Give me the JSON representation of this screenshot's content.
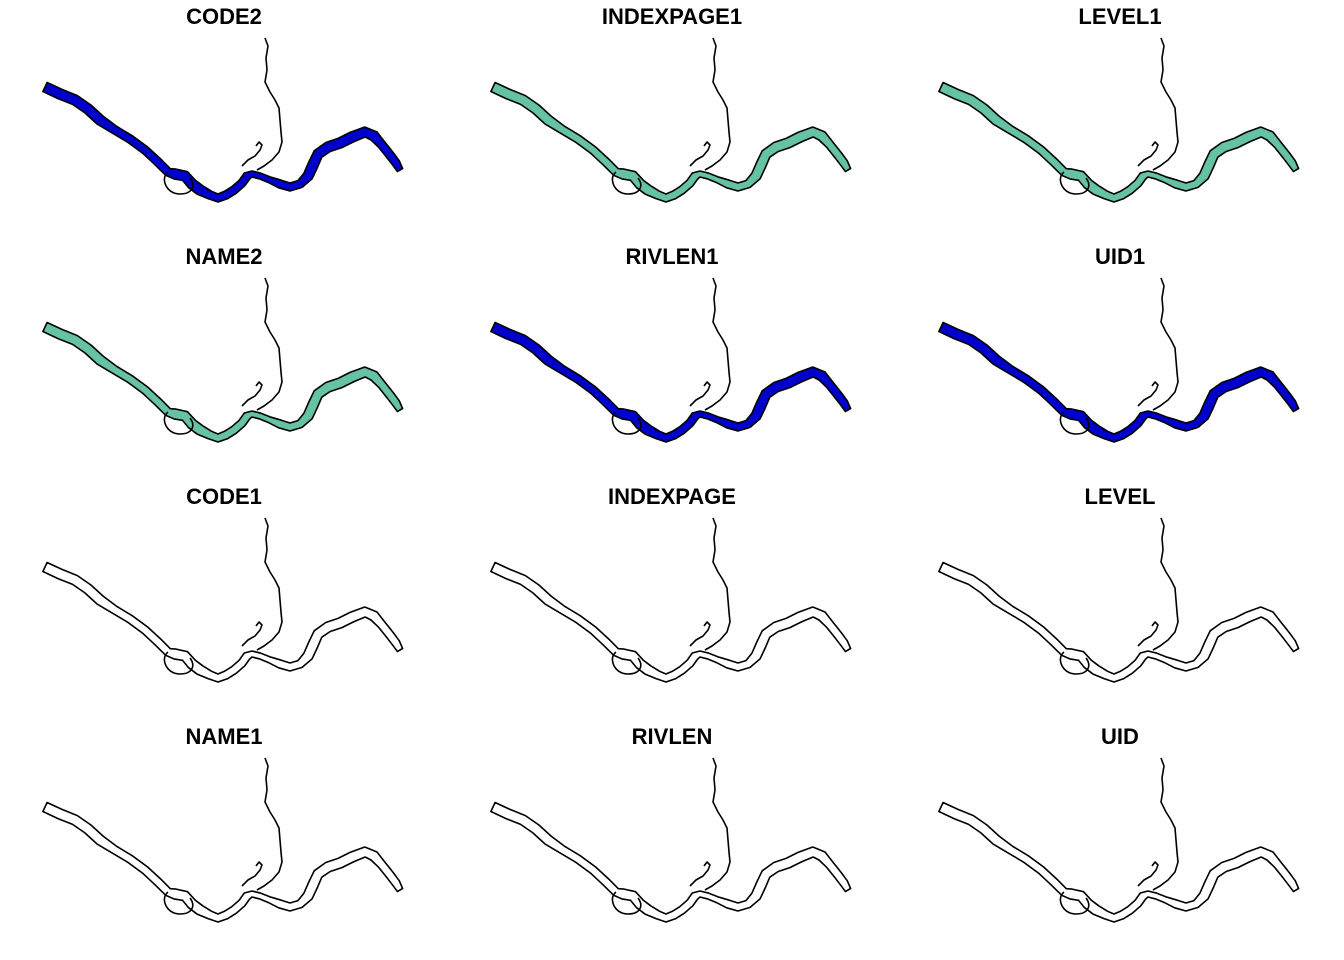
{
  "map": {
    "panels": [
      {
        "title": "CODE2",
        "fill": "#0000CD"
      },
      {
        "title": "INDEXPAGE1",
        "fill": "#66C2A5"
      },
      {
        "title": "LEVEL1",
        "fill": "#66C2A5"
      },
      {
        "title": "NAME2",
        "fill": "#66C2A5"
      },
      {
        "title": "RIVLEN1",
        "fill": "#0000CD"
      },
      {
        "title": "UID1",
        "fill": "#0000CD"
      },
      {
        "title": "CODE1",
        "fill": "#FFFFFF"
      },
      {
        "title": "INDEXPAGE",
        "fill": "#FFFFFF"
      },
      {
        "title": "LEVEL",
        "fill": "#FFFFFF"
      },
      {
        "title": "NAME1",
        "fill": "#FFFFFF"
      },
      {
        "title": "RIVLEN",
        "fill": "#FFFFFF"
      },
      {
        "title": "UID",
        "fill": "#FFFFFF"
      }
    ],
    "outline_color": "#000000",
    "background": "#FFFFFF"
  }
}
